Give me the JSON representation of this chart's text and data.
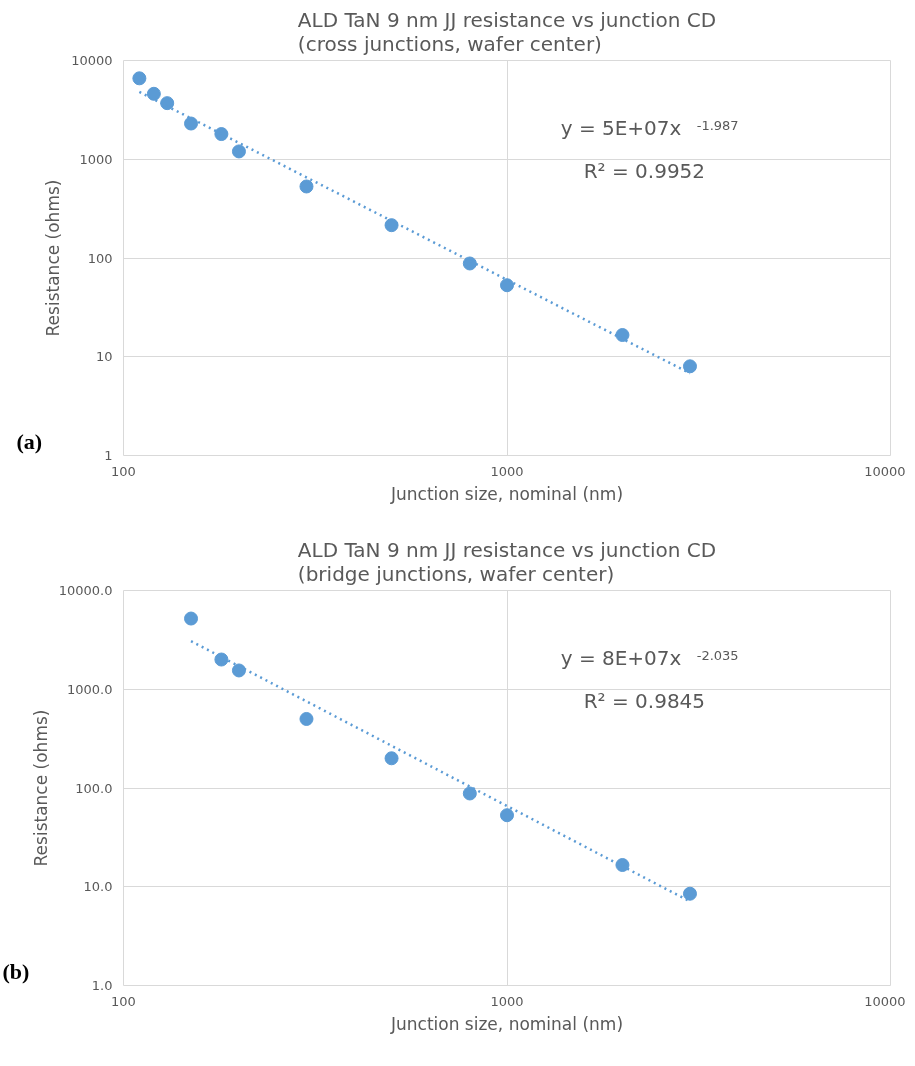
{
  "chart_data": [
    {
      "type": "scatter",
      "title": "ALD TaN 9 nm JJ resistance vs junction CD\n(cross junctions, wafer center)",
      "xlabel": "Junction size, nominal (nm)",
      "ylabel": "Resistance (ohms)",
      "log": "xy",
      "grid": true,
      "marker": "circle",
      "xlim": [
        100,
        10000
      ],
      "xticks": [
        100,
        1000,
        10000
      ],
      "ylim": [
        1,
        10000
      ],
      "yticks": [
        1,
        10,
        100,
        1000,
        10000
      ],
      "annotations": [
        "y = 5E+07x$^{-1.987}$",
        "R² = 0.9952",
        "(a)"
      ],
      "series": [
        {
          "type": "scatter",
          "color": "#5b9bd5",
          "x": [
            110,
            120,
            130,
            150,
            180,
            200,
            300,
            500,
            800,
            1000,
            2000,
            3000
          ],
          "values": [
            6600,
            4600,
            3700,
            2300,
            1800,
            1200,
            530,
            215,
            88,
            53,
            16.6,
            8
          ]
        },
        {
          "type": "line",
          "color": "#5b9bd5",
          "line_style": "dotted",
          "marker": "none",
          "x": [
            110,
            3000
          ],
          "values": [
            4800,
            6.8
          ]
        }
      ]
    },
    {
      "type": "scatter",
      "title": "ALD TaN 9 nm JJ resistance vs junction CD\n(bridge junctions, wafer center)",
      "xlabel": "Junction size, nominal (nm)",
      "ylabel": "Resistance (ohms)",
      "log": "xy",
      "grid": true,
      "marker": "circle",
      "xlim": [
        100,
        10000
      ],
      "xticks": [
        100,
        1000,
        10000
      ],
      "ylim": [
        1,
        10000
      ],
      "yticks": [
        {
          "value": 1,
          "label": "1.0"
        },
        {
          "value": 10,
          "label": "10.0"
        },
        {
          "value": 100,
          "label": "100.0"
        },
        {
          "value": 1000,
          "label": "1000.0"
        },
        {
          "value": 10000,
          "label": "10000.0"
        }
      ],
      "annotations": [
        "y = 8E+07x$^{-2.035}$",
        "R² = 0.9845",
        "(b)"
      ],
      "series": [
        {
          "type": "scatter",
          "color": "#5b9bd5",
          "x": [
            150,
            180,
            200,
            300,
            500,
            800,
            1000,
            2000,
            3000
          ],
          "values": [
            5200,
            2000,
            1550,
            500,
            200,
            88,
            53,
            16.6,
            8.5
          ]
        },
        {
          "type": "line",
          "color": "#5b9bd5",
          "line_style": "dotted",
          "marker": "none",
          "x": [
            150,
            3000
          ],
          "values": [
            3070,
            7.1
          ]
        }
      ]
    }
  ]
}
